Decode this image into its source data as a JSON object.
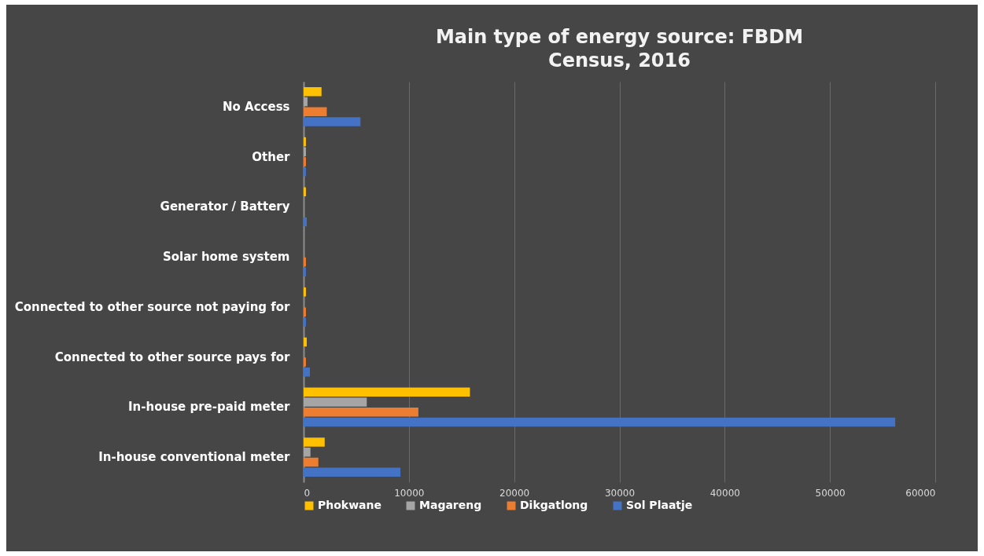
{
  "chart_data": {
    "type": "bar",
    "orientation": "horizontal",
    "title": "Main type of energy source: FBDM",
    "subtitle": "Census, 2016",
    "categories": [
      "No Access",
      "Other",
      "Generator / Battery",
      "Solar home system",
      "Connected to other source not paying for",
      "Connected to other source pays for",
      "In-house pre-paid meter",
      "In-house conventional meter"
    ],
    "series": [
      {
        "name": "Phokwane",
        "color": "#ffc000",
        "values": [
          1700,
          220,
          220,
          0,
          220,
          300,
          15800,
          2000
        ]
      },
      {
        "name": "Magareng",
        "color": "#a5a5a5",
        "values": [
          370,
          220,
          0,
          0,
          0,
          0,
          6000,
          650
        ]
      },
      {
        "name": "Dikgatlong",
        "color": "#ed7d31",
        "values": [
          2200,
          220,
          0,
          220,
          220,
          220,
          10900,
          1400
        ]
      },
      {
        "name": "Sol Plaatje",
        "color": "#4472c4",
        "values": [
          5400,
          220,
          300,
          220,
          220,
          600,
          56200,
          9200
        ]
      }
    ],
    "xlim": [
      0,
      60000
    ],
    "xticks": [
      0,
      10000,
      20000,
      30000,
      40000,
      50000,
      60000
    ],
    "grid": "x",
    "legend": "bottom"
  }
}
